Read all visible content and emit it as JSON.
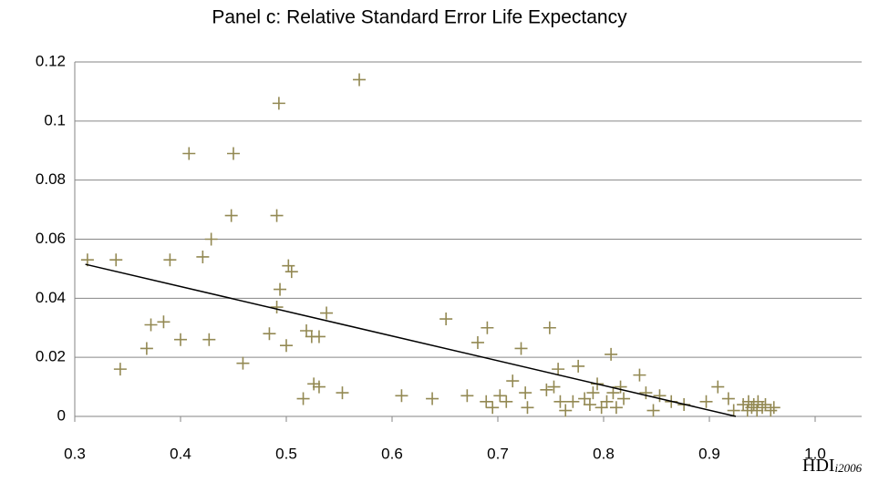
{
  "chart_data": {
    "type": "scatter",
    "title": "Panel c: Relative Standard Error Life Expectancy",
    "xlabel": "HDI",
    "xlabel_sub": "i2006",
    "color": "#938953",
    "x": [
      0.312,
      0.339,
      0.343,
      0.368,
      0.372,
      0.384,
      0.39,
      0.4,
      0.408,
      0.421,
      0.429,
      0.427,
      0.45,
      0.448,
      0.459,
      0.484,
      0.491,
      0.493,
      0.491,
      0.494,
      0.502,
      0.505,
      0.5,
      0.516,
      0.519,
      0.524,
      0.531,
      0.526,
      0.531,
      0.538,
      0.553,
      0.569,
      0.609,
      0.638,
      0.651,
      0.671,
      0.681,
      0.69,
      0.689,
      0.695,
      0.702,
      0.708,
      0.714,
      0.722,
      0.726,
      0.728,
      0.746,
      0.749,
      0.753,
      0.757,
      0.759,
      0.764,
      0.771,
      0.776,
      0.782,
      0.787,
      0.79,
      0.794,
      0.798,
      0.803,
      0.807,
      0.809,
      0.812,
      0.816,
      0.819,
      0.834,
      0.84,
      0.847,
      0.853,
      0.864,
      0.876,
      0.897,
      0.908,
      0.918,
      0.923,
      0.932,
      0.936,
      0.937,
      0.94,
      0.942,
      0.945,
      0.946,
      0.95,
      0.953,
      0.958,
      0.961
    ],
    "values": [
      0.053,
      0.053,
      0.016,
      0.023,
      0.031,
      0.032,
      0.053,
      0.026,
      0.089,
      0.054,
      0.06,
      0.026,
      0.089,
      0.068,
      0.018,
      0.028,
      0.068,
      0.106,
      0.037,
      0.043,
      0.051,
      0.049,
      0.024,
      0.006,
      0.029,
      0.027,
      0.027,
      0.011,
      0.01,
      0.035,
      0.008,
      0.114,
      0.007,
      0.006,
      0.033,
      0.007,
      0.025,
      0.03,
      0.005,
      0.003,
      0.007,
      0.005,
      0.012,
      0.023,
      0.008,
      0.003,
      0.009,
      0.03,
      0.01,
      0.016,
      0.005,
      0.002,
      0.005,
      0.017,
      0.006,
      0.004,
      0.008,
      0.011,
      0.003,
      0.005,
      0.021,
      0.008,
      0.003,
      0.01,
      0.006,
      0.014,
      0.008,
      0.002,
      0.007,
      0.005,
      0.004,
      0.005,
      0.01,
      0.006,
      0.002,
      0.004,
      0.002,
      0.005,
      0.003,
      0.004,
      0.002,
      0.005,
      0.003,
      0.004,
      0.002,
      0.003
    ],
    "trendline": {
      "x": [
        0.31,
        0.925
      ],
      "y": [
        0.0515,
        0
      ]
    },
    "xlim": [
      0.3,
      1.05
    ],
    "ylim": [
      0,
      0.12
    ],
    "xticks": [
      0.3,
      0.4,
      0.5,
      0.6,
      0.7,
      0.8,
      0.9,
      {
        "value": 1,
        "label": "1.0"
      }
    ],
    "yticks": [
      0,
      0.02,
      0.04,
      0.06,
      0.08,
      0.1,
      0.12
    ],
    "grid": true
  }
}
